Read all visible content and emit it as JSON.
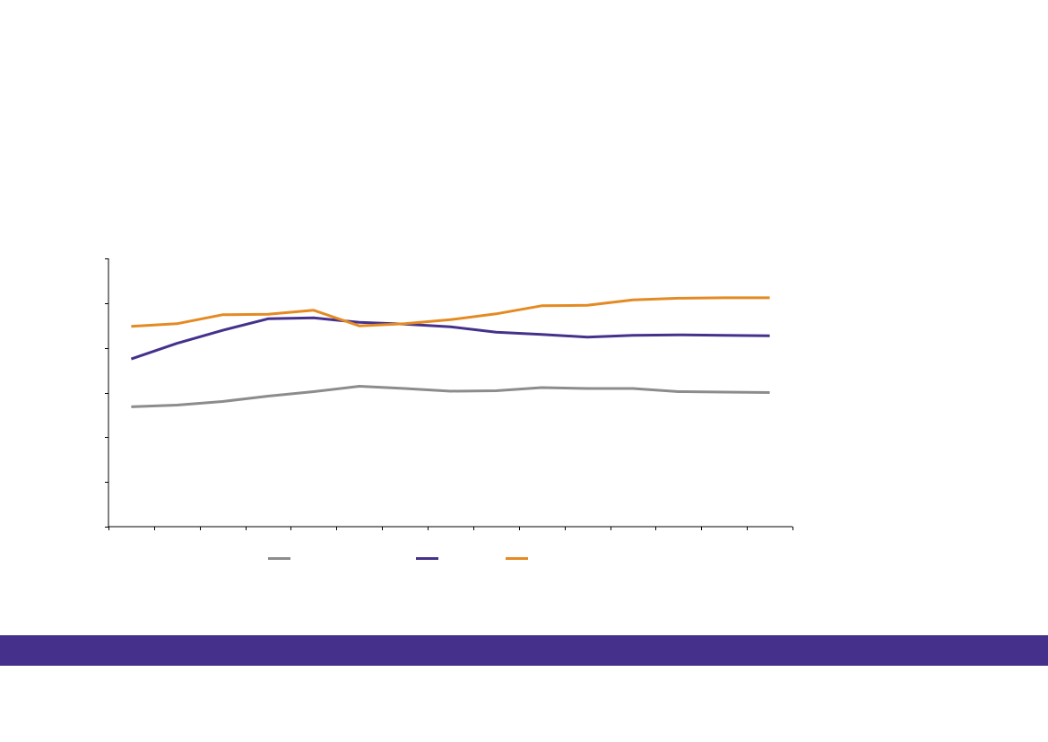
{
  "chart_data": {
    "type": "line",
    "categories": [
      "",
      "",
      "",
      "",
      "",
      "",
      "",
      "",
      "",
      "",
      "",
      "",
      "",
      "",
      ""
    ],
    "ylim": [
      0,
      6
    ],
    "y_tick_count": 7,
    "grid": false,
    "legend_position": "bottom",
    "series": [
      {
        "color": "#8c8c8c",
        "values": [
          2.68,
          2.72,
          2.8,
          2.92,
          3.02,
          3.14,
          3.09,
          3.03,
          3.04,
          3.11,
          3.09,
          3.09,
          3.02,
          3.01,
          3.0
        ]
      },
      {
        "color": "#45318b",
        "values": [
          3.75,
          4.1,
          4.39,
          4.65,
          4.67,
          4.57,
          4.53,
          4.47,
          4.35,
          4.3,
          4.24,
          4.28,
          4.29,
          4.28,
          4.27
        ]
      },
      {
        "color": "#e48a23",
        "values": [
          4.48,
          4.54,
          4.74,
          4.75,
          4.84,
          4.49,
          4.54,
          4.63,
          4.76,
          4.94,
          4.95,
          5.07,
          5.11,
          5.12,
          5.12
        ]
      }
    ]
  },
  "footer": {
    "bar_color": "#45318b"
  }
}
